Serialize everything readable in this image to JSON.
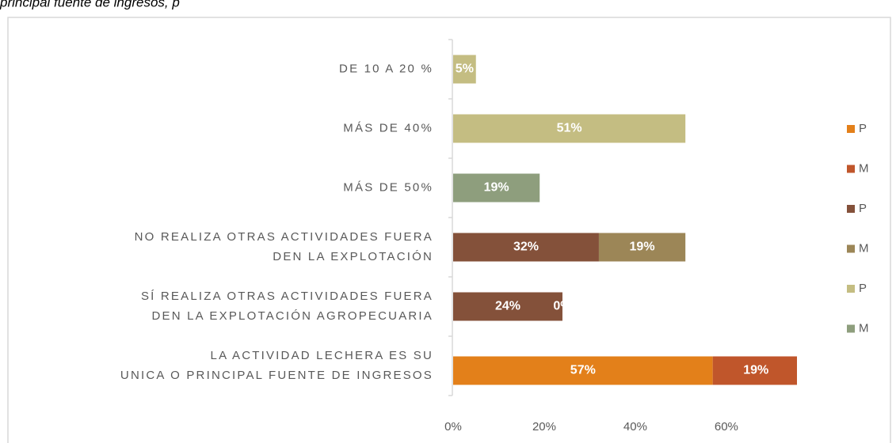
{
  "caption": "principal fuente de ingresos, p",
  "chart_data": {
    "type": "stacked-bar-horizontal",
    "categories": [
      [
        "DE 10 A 20 %"
      ],
      [
        "MÁS DE 40%"
      ],
      [
        "MÁS DE 50%"
      ],
      [
        "NO REALIZA OTRAS ACTIVIDADES FUERA",
        "DEN LA EXPLOTACIÓN"
      ],
      [
        "SÍ REALIZA OTRAS ACTIVIDADES FUERA",
        "DEN LA EXPLOTACIÓN AGROPECUARIA"
      ],
      [
        "LA ACTIVIDAD LECHERA ES SU",
        "UNICA O PRINCIPAL FUENTE DE INGRESOS"
      ]
    ],
    "series": [
      {
        "name": "P",
        "color": "#e3801a",
        "values": [
          null,
          null,
          null,
          null,
          null,
          57
        ],
        "value_labels": [
          null,
          null,
          null,
          null,
          null,
          "57%"
        ]
      },
      {
        "name": "M",
        "color": "#c0562b",
        "values": [
          null,
          null,
          null,
          null,
          null,
          19
        ],
        "value_labels": [
          null,
          null,
          null,
          null,
          null,
          "19%"
        ]
      },
      {
        "name": "P",
        "color": "#84513a",
        "values": [
          null,
          null,
          null,
          32,
          24,
          null
        ],
        "value_labels": [
          null,
          null,
          null,
          "32%",
          "24%",
          null
        ]
      },
      {
        "name": "M",
        "color": "#9c8657",
        "values": [
          null,
          null,
          null,
          19,
          0,
          null
        ],
        "value_labels": [
          null,
          null,
          null,
          "19%",
          "0%",
          null
        ]
      },
      {
        "name": "P",
        "color": "#c4bd82",
        "values": [
          5,
          51,
          null,
          null,
          null,
          null
        ],
        "value_labels": [
          "5%",
          "51%",
          null,
          null,
          null,
          null
        ]
      },
      {
        "name": "M",
        "color": "#8e9e7d",
        "values": [
          null,
          null,
          19,
          null,
          null,
          null
        ],
        "value_labels": [
          null,
          null,
          "19%",
          null,
          null,
          null
        ]
      }
    ],
    "xlim": [
      0,
      75.5
    ],
    "xticks": [
      {
        "value": 0,
        "label": "0%"
      },
      {
        "value": 20,
        "label": "20%"
      },
      {
        "value": 40,
        "label": "40%"
      },
      {
        "value": 60,
        "label": "60%"
      }
    ],
    "legend": "right"
  }
}
